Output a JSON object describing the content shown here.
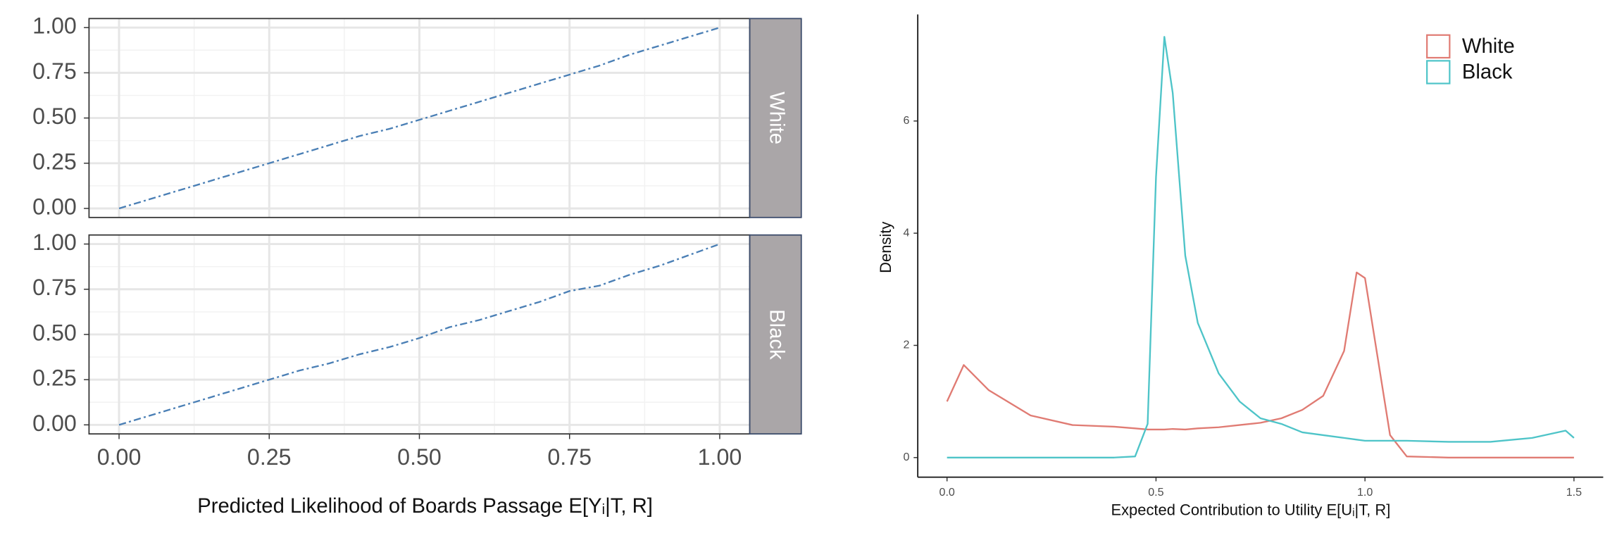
{
  "chart_data": [
    {
      "type": "line",
      "x": [
        0,
        0.05,
        0.1,
        0.15,
        0.2,
        0.25,
        0.3,
        0.35,
        0.4,
        0.45,
        0.5,
        0.55,
        0.6,
        0.65,
        0.7,
        0.75,
        0.8,
        0.85,
        0.9,
        0.95,
        1.0
      ],
      "xlim": [
        -0.05,
        1.05
      ],
      "xticks": [
        {
          "value": 0,
          "label": "0.00"
        },
        {
          "value": 0.25,
          "label": "0.25"
        },
        {
          "value": 0.5,
          "label": "0.50"
        },
        {
          "value": 0.75,
          "label": "0.75"
        },
        {
          "value": 1,
          "label": "1.00"
        }
      ],
      "ylim": [
        -0.05,
        1.05
      ],
      "yticks": [
        {
          "value": 0,
          "label": "0.00"
        },
        {
          "value": 0.25,
          "label": "0.25"
        },
        {
          "value": 0.5,
          "label": "0.50"
        },
        {
          "value": 0.75,
          "label": "0.75"
        },
        {
          "value": 1,
          "label": "1.00"
        }
      ],
      "xlabel": "Predicted Likelihood of Boards Passage E[Yᵢ|T, R]",
      "grid": true,
      "color": "#4a7fb5",
      "facets": [
        {
          "label": "White",
          "values": [
            0,
            0.05,
            0.1,
            0.15,
            0.2,
            0.25,
            0.3,
            0.35,
            0.4,
            0.44,
            0.49,
            0.54,
            0.59,
            0.64,
            0.69,
            0.74,
            0.79,
            0.85,
            0.9,
            0.95,
            1.0
          ]
        },
        {
          "label": "Black",
          "values": [
            0,
            0.05,
            0.1,
            0.15,
            0.2,
            0.25,
            0.3,
            0.34,
            0.39,
            0.43,
            0.48,
            0.54,
            0.58,
            0.63,
            0.68,
            0.74,
            0.77,
            0.83,
            0.88,
            0.94,
            1.0
          ]
        }
      ]
    },
    {
      "type": "density",
      "x": [
        0,
        0.04,
        0.1,
        0.2,
        0.3,
        0.4,
        0.45,
        0.48,
        0.5,
        0.52,
        0.54,
        0.57,
        0.6,
        0.65,
        0.7,
        0.75,
        0.8,
        0.85,
        0.9,
        0.95,
        0.98,
        1.0,
        1.03,
        1.06,
        1.1,
        1.2,
        1.3,
        1.4,
        1.48,
        1.5
      ],
      "xlim": [
        -0.07,
        1.57
      ],
      "ylim": [
        -0.35,
        7.9
      ],
      "xticks": [
        {
          "value": 0,
          "label": "0.0"
        },
        {
          "value": 0.5,
          "label": "0.5"
        },
        {
          "value": 1,
          "label": "1.0"
        },
        {
          "value": 1.5,
          "label": "1.5"
        }
      ],
      "yticks": [
        0,
        2,
        4,
        6
      ],
      "xlabel": "Expected Contribution to Utility   E[Uᵢ|T, R]",
      "ylabel": "Density",
      "legend": "top-right",
      "series": [
        {
          "name": "White",
          "color": "#e07b73",
          "values": [
            1.0,
            1.65,
            1.2,
            0.75,
            0.58,
            0.55,
            0.52,
            0.5,
            0.5,
            0.5,
            0.51,
            0.5,
            0.52,
            0.54,
            0.58,
            0.62,
            0.7,
            0.85,
            1.1,
            1.9,
            3.3,
            3.2,
            1.8,
            0.4,
            0.02,
            0,
            0,
            0,
            0,
            0
          ]
        },
        {
          "name": "Black",
          "color": "#4ec4c8",
          "values": [
            0,
            0,
            0,
            0,
            0,
            0,
            0.02,
            0.6,
            5,
            7.5,
            6.5,
            3.6,
            2.4,
            1.5,
            1.0,
            0.7,
            0.6,
            0.45,
            0.4,
            0.35,
            0.32,
            0.3,
            0.3,
            0.3,
            0.3,
            0.28,
            0.28,
            0.35,
            0.48,
            0.35
          ]
        }
      ]
    }
  ]
}
